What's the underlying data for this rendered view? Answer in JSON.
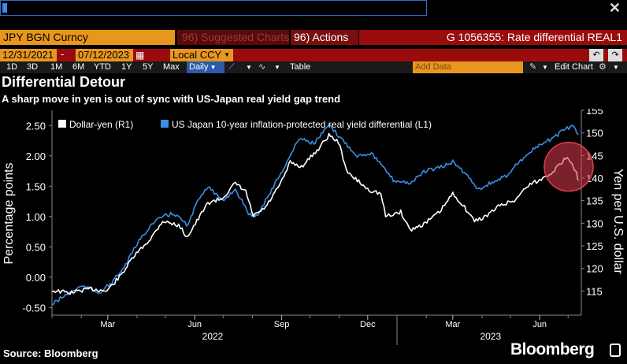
{
  "toolbar": {
    "security_name": "JPY BGN Curncy",
    "suggested_label": "96) Suggested Charts",
    "actions_label": "96) Actions",
    "chart_id": "G 1056355: Rate differential REAL1",
    "start_date": "12/31/2021",
    "end_date": "07/12/2023",
    "currency": "Local CCY",
    "periods": [
      "1D",
      "3D",
      "1M",
      "6M",
      "YTD",
      "1Y",
      "5Y",
      "Max"
    ],
    "frequency": "Daily",
    "table_label": "Table",
    "add_data_placeholder": "Add Data",
    "edit_chart_label": "Edit Chart"
  },
  "header": {
    "title": "Differential Detour",
    "subtitle": "A sharp move in yen is out of sync with US-Japan real yield gap trend"
  },
  "footer": {
    "source": "Source: Bloomberg",
    "brand": "Bloomberg"
  },
  "colors": {
    "usd_jpy": "#ffffff",
    "yield_diff": "#3a8ee8",
    "highlight": "#e03c50",
    "orange": "#e8961e",
    "red_bar": "#9a0c0c"
  },
  "chart_data": {
    "type": "line",
    "legend_position": "top-left",
    "grid": false,
    "ylabel_left": "Percentage points",
    "ylabel_right": "Yen per U.S. dollar",
    "x_range": [
      "2022-01-01",
      "2023-07-15"
    ],
    "x_ticks": [
      {
        "date": "2022-03-01",
        "label": "Mar"
      },
      {
        "date": "2022-06-01",
        "label": "Jun"
      },
      {
        "date": "2022-09-01",
        "label": "Sep"
      },
      {
        "date": "2022-12-01",
        "label": "Dec"
      },
      {
        "date": "2023-03-01",
        "label": "Mar"
      },
      {
        "date": "2023-06-01",
        "label": "Jun"
      }
    ],
    "year_labels": [
      {
        "date": "2022-06-20",
        "label": "2022"
      },
      {
        "date": "2023-04-10",
        "label": "2023"
      }
    ],
    "y_left": {
      "min": -0.6,
      "max": 2.75,
      "ticks": [
        -0.5,
        0.0,
        0.5,
        1.0,
        1.5,
        2.0,
        2.5
      ],
      "tick_labels": [
        "-0.50",
        "0.00",
        "0.50",
        "1.00",
        "1.50",
        "2.00",
        "2.50"
      ]
    },
    "y_right": {
      "min": 110,
      "max": 155,
      "ticks": [
        115,
        120,
        125,
        130,
        135,
        140,
        145,
        150,
        155
      ],
      "tick_labels": [
        "115",
        "120",
        "125",
        "130",
        "135",
        "140",
        "145",
        "150",
        "155"
      ]
    },
    "series": [
      {
        "name": "Dollar-yen (R1)",
        "axis": "right",
        "points": [
          [
            "2022-01-01",
            115.1
          ],
          [
            "2022-01-20",
            114.6
          ],
          [
            "2022-02-10",
            115.5
          ],
          [
            "2022-02-28",
            115.0
          ],
          [
            "2022-03-15",
            118.5
          ],
          [
            "2022-03-28",
            122.5
          ],
          [
            "2022-04-15",
            126.5
          ],
          [
            "2022-04-28",
            130.5
          ],
          [
            "2022-05-15",
            129.5
          ],
          [
            "2022-05-24",
            127.0
          ],
          [
            "2022-06-05",
            131.0
          ],
          [
            "2022-06-15",
            134.5
          ],
          [
            "2022-06-30",
            135.5
          ],
          [
            "2022-07-14",
            138.8
          ],
          [
            "2022-07-25",
            137.0
          ],
          [
            "2022-08-02",
            131.5
          ],
          [
            "2022-08-15",
            133.5
          ],
          [
            "2022-08-31",
            138.8
          ],
          [
            "2022-09-10",
            143.5
          ],
          [
            "2022-09-22",
            142.5
          ],
          [
            "2022-10-10",
            146.5
          ],
          [
            "2022-10-21",
            149.5
          ],
          [
            "2022-10-31",
            148.0
          ],
          [
            "2022-11-10",
            141.0
          ],
          [
            "2022-11-20",
            139.5
          ],
          [
            "2022-12-01",
            137.5
          ],
          [
            "2022-12-15",
            136.5
          ],
          [
            "2022-12-20",
            131.5
          ],
          [
            "2023-01-05",
            132.5
          ],
          [
            "2023-01-15",
            128.5
          ],
          [
            "2023-01-31",
            130.0
          ],
          [
            "2023-02-15",
            132.5
          ],
          [
            "2023-03-01",
            136.5
          ],
          [
            "2023-03-10",
            134.5
          ],
          [
            "2023-03-24",
            130.5
          ],
          [
            "2023-04-05",
            131.5
          ],
          [
            "2023-04-20",
            134.0
          ],
          [
            "2023-05-05",
            135.0
          ],
          [
            "2023-05-20",
            138.5
          ],
          [
            "2023-06-01",
            139.5
          ],
          [
            "2023-06-15",
            141.5
          ],
          [
            "2023-06-25",
            143.5
          ],
          [
            "2023-06-30",
            144.8
          ],
          [
            "2023-07-05",
            143.5
          ],
          [
            "2023-07-10",
            141.0
          ],
          [
            "2023-07-12",
            139.5
          ]
        ]
      },
      {
        "name": "US Japan 10-year inflation-protected real yield differential (L1)",
        "axis": "left",
        "points": [
          [
            "2022-01-01",
            -0.45
          ],
          [
            "2022-01-15",
            -0.3
          ],
          [
            "2022-02-01",
            -0.15
          ],
          [
            "2022-02-20",
            -0.25
          ],
          [
            "2022-03-05",
            -0.1
          ],
          [
            "2022-03-20",
            0.2
          ],
          [
            "2022-04-01",
            0.55
          ],
          [
            "2022-04-15",
            0.85
          ],
          [
            "2022-04-28",
            1.0
          ],
          [
            "2022-05-10",
            1.05
          ],
          [
            "2022-05-25",
            0.85
          ],
          [
            "2022-06-05",
            1.3
          ],
          [
            "2022-06-15",
            1.5
          ],
          [
            "2022-06-30",
            1.25
          ],
          [
            "2022-07-14",
            1.45
          ],
          [
            "2022-07-28",
            1.05
          ],
          [
            "2022-08-05",
            1.0
          ],
          [
            "2022-08-20",
            1.4
          ],
          [
            "2022-09-05",
            1.85
          ],
          [
            "2022-09-20",
            2.3
          ],
          [
            "2022-10-05",
            2.2
          ],
          [
            "2022-10-21",
            2.5
          ],
          [
            "2022-11-05",
            2.25
          ],
          [
            "2022-11-20",
            2.0
          ],
          [
            "2022-12-05",
            2.05
          ],
          [
            "2022-12-15",
            1.85
          ],
          [
            "2022-12-28",
            1.6
          ],
          [
            "2023-01-15",
            1.55
          ],
          [
            "2023-01-31",
            1.75
          ],
          [
            "2023-02-15",
            1.8
          ],
          [
            "2023-03-01",
            1.9
          ],
          [
            "2023-03-15",
            1.7
          ],
          [
            "2023-03-28",
            1.45
          ],
          [
            "2023-04-10",
            1.55
          ],
          [
            "2023-04-25",
            1.65
          ],
          [
            "2023-05-10",
            1.9
          ],
          [
            "2023-05-25",
            2.1
          ],
          [
            "2023-06-10",
            2.25
          ],
          [
            "2023-06-25",
            2.4
          ],
          [
            "2023-07-05",
            2.5
          ],
          [
            "2023-07-12",
            2.35
          ]
        ]
      }
    ],
    "highlight": {
      "date": "2023-07-05",
      "y_right": 142.5,
      "description": "red circle"
    }
  }
}
